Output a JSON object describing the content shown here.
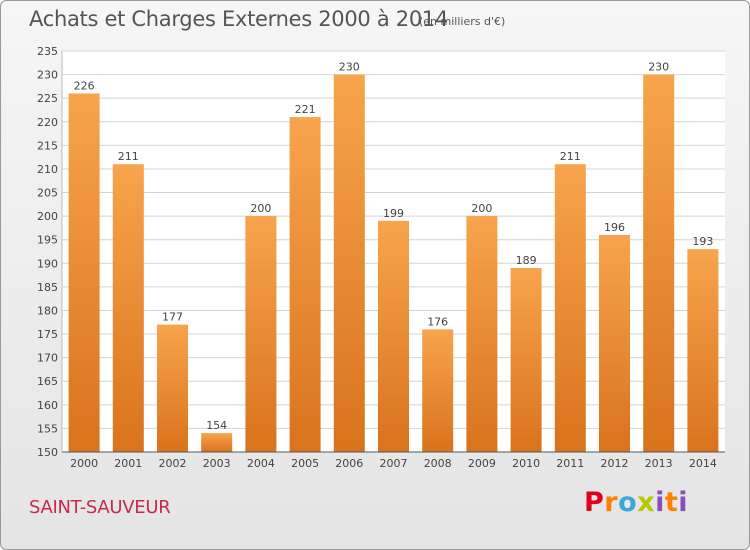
{
  "chart_data": {
    "type": "bar",
    "title": "Achats et Charges Externes 2000 à 2014",
    "subtitle": "(en milliers d'€)",
    "categories": [
      "2000",
      "2001",
      "2002",
      "2003",
      "2004",
      "2005",
      "2006",
      "2007",
      "2008",
      "2009",
      "2010",
      "2011",
      "2012",
      "2013",
      "2014"
    ],
    "values": [
      226,
      211,
      177,
      154,
      200,
      221,
      230,
      199,
      176,
      200,
      189,
      211,
      196,
      230,
      193
    ],
    "ylim": [
      150,
      235
    ],
    "yticks": [
      150,
      155,
      160,
      165,
      170,
      175,
      180,
      185,
      190,
      195,
      200,
      205,
      210,
      215,
      220,
      225,
      230,
      235
    ],
    "grid": true,
    "bar_color_top": "#f7a44c",
    "bar_color_bottom": "#d9731c"
  },
  "footer": {
    "town": "SAINT-SAUVEUR",
    "brand_letters": [
      "P",
      "r",
      "o",
      "x",
      "i",
      "t",
      "i"
    ]
  }
}
